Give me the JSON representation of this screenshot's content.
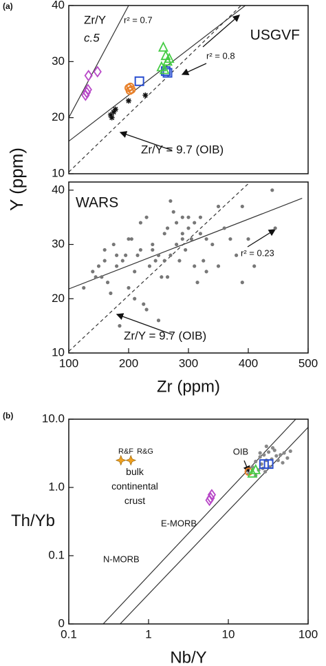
{
  "chart_data": [
    {
      "type": "scatter",
      "panel_label": "(a)",
      "title": "USGVF",
      "ylabel": "Y (ppm)",
      "xlim": [
        100,
        500
      ],
      "ylim": [
        10,
        40
      ],
      "yticks": [
        10,
        20,
        30,
        40
      ],
      "annotations": [
        "Zr/Y",
        "c.5",
        "r² = 0.7",
        "r² = 0.8",
        "Zr/Y = 9.7 (OIB)"
      ],
      "lines": [
        {
          "x": [
            100,
            200
          ],
          "y": [
            20,
            40
          ],
          "dashed": false
        },
        {
          "x": [
            100,
            395
          ],
          "y": [
            15.8,
            40
          ],
          "dashed": false
        },
        {
          "x": [
            100,
            388
          ],
          "y": [
            10.3,
            40
          ],
          "dashed": true
        }
      ],
      "series": [
        {
          "marker": "diamond",
          "color": "#b848c8",
          "x": [
            148,
            133,
            132,
            128,
            130
          ],
          "values": [
            28.2,
            27.5,
            25,
            24,
            24.5
          ]
        },
        {
          "marker": "circle",
          "color": "#e8802a",
          "x": [
            200,
            203,
            205,
            202
          ],
          "values": [
            25.3,
            25.5,
            25,
            24.8
          ]
        },
        {
          "marker": "square",
          "color": "#2a4fd0",
          "x": [
            218,
            262,
            265
          ],
          "values": [
            26.5,
            28.3,
            28
          ]
        },
        {
          "marker": "triangle",
          "color": "#44cc44",
          "x": [
            258,
            262,
            265,
            255,
            268,
            260
          ],
          "values": [
            32.5,
            31,
            30,
            29,
            30.5,
            28.5
          ]
        },
        {
          "marker": "asterisk",
          "color": "#111111",
          "x": [
            175,
            170,
            178,
            172,
            200,
            228
          ],
          "values": [
            21,
            20.5,
            21.5,
            20,
            23,
            24
          ]
        }
      ]
    },
    {
      "type": "scatter",
      "title": "WARS",
      "xlabel": "Zr (ppm)",
      "xlim": [
        100,
        500
      ],
      "ylim": [
        10,
        41.5
      ],
      "xticks": [
        100,
        200,
        300,
        400,
        500
      ],
      "yticks": [
        10,
        20,
        30,
        40
      ],
      "annotations": [
        "r² = 0.23",
        "Zr/Y = 9.7 (OIB)"
      ],
      "lines": [
        {
          "x": [
            100,
            490
          ],
          "y": [
            21.8,
            38.5
          ],
          "dashed": false
        },
        {
          "x": [
            100,
            400
          ],
          "y": [
            10.3,
            41.2
          ],
          "dashed": true
        }
      ],
      "series": [
        {
          "marker": "dot",
          "color": "#777777",
          "x": [
            125,
            140,
            145,
            150,
            155,
            160,
            165,
            170,
            175,
            180,
            185,
            190,
            195,
            200,
            205,
            210,
            215,
            220,
            225,
            230,
            235,
            240,
            245,
            250,
            255,
            260,
            265,
            270,
            275,
            280,
            285,
            290,
            295,
            300,
            305,
            310,
            315,
            320,
            325,
            330,
            340,
            350,
            360,
            370,
            380,
            390,
            400,
            410,
            440,
            445,
            180,
            200,
            210,
            220,
            240,
            250,
            260,
            270,
            280,
            290,
            300,
            310,
            320,
            330,
            350,
            160,
            230,
            265,
            290,
            390
          ],
          "values": [
            22,
            25,
            24,
            26,
            24,
            27,
            23,
            21,
            30,
            26,
            15,
            27,
            28,
            22,
            31,
            20,
            28,
            29,
            19,
            35,
            26,
            30,
            27,
            16,
            24,
            32,
            33,
            28,
            36,
            30,
            27,
            32,
            29,
            33,
            31,
            34,
            23,
            35,
            27,
            31,
            30,
            26,
            33,
            31,
            28,
            37,
            31,
            26,
            40,
            33,
            28,
            31,
            25,
            34,
            29,
            28,
            27,
            38,
            34,
            31,
            35,
            26,
            32,
            25,
            37,
            29,
            18,
            24,
            35,
            23
          ]
        }
      ]
    },
    {
      "type": "scatter",
      "panel_label": "(b)",
      "xlabel": "Nb/Y",
      "ylabel": "Th/Yb",
      "log_x": true,
      "log_y": true,
      "xlim": [
        0.1,
        100
      ],
      "ylim": [
        0.01,
        10
      ],
      "xticks": [
        0.1,
        1,
        10,
        100
      ],
      "yticks": [
        {
          "value": 0.01,
          "label": "0"
        },
        0.1,
        {
          "value": 1,
          "label": "1.0"
        },
        {
          "value": 10,
          "label": "10.0"
        }
      ],
      "annotations": [
        "R&F",
        "R&G",
        "bulk continental crust",
        "OIB",
        "E-MORB",
        "N-MORB"
      ],
      "lines": [
        {
          "x": [
            0.27,
            70
          ],
          "y": [
            0.01,
            10
          ],
          "dashed": false
        },
        {
          "x": [
            0.44,
            100
          ],
          "y": [
            0.01,
            7.6
          ],
          "dashed": false
        }
      ],
      "series": [
        {
          "marker": "dot",
          "color": "#888888",
          "x": [
            18,
            20,
            22,
            24,
            25,
            26,
            28,
            30,
            32,
            35,
            38,
            40,
            45,
            50,
            55,
            22,
            27,
            33,
            42,
            36,
            30,
            25,
            48,
            29,
            60
          ],
          "values": [
            1.6,
            2.0,
            2.4,
            1.8,
            2.8,
            2.2,
            3.0,
            2.5,
            3.3,
            2.6,
            3.5,
            2.9,
            3.0,
            3.2,
            2.7,
            1.5,
            1.9,
            2.0,
            2.5,
            3.8,
            4.0,
            3.2,
            2.3,
            1.7,
            3.4
          ]
        },
        {
          "marker": "star",
          "color": "#f0a020",
          "x": [
            0.45,
            0.6
          ],
          "values": [
            2.5,
            2.5
          ]
        },
        {
          "marker": "diamond",
          "color": "#b848c8",
          "x": [
            6,
            6.2,
            5.8
          ],
          "values": [
            0.7,
            0.78,
            0.65
          ]
        },
        {
          "marker": "circle",
          "color": "#e8802a",
          "x": [
            18
          ],
          "values": [
            1.7
          ]
        },
        {
          "marker": "triangle",
          "color": "#44cc44",
          "x": [
            20,
            22
          ],
          "values": [
            1.6,
            1.8
          ]
        },
        {
          "marker": "square",
          "color": "#2a4fd0",
          "x": [
            28,
            32
          ],
          "values": [
            2.2,
            2.2
          ]
        }
      ]
    }
  ]
}
